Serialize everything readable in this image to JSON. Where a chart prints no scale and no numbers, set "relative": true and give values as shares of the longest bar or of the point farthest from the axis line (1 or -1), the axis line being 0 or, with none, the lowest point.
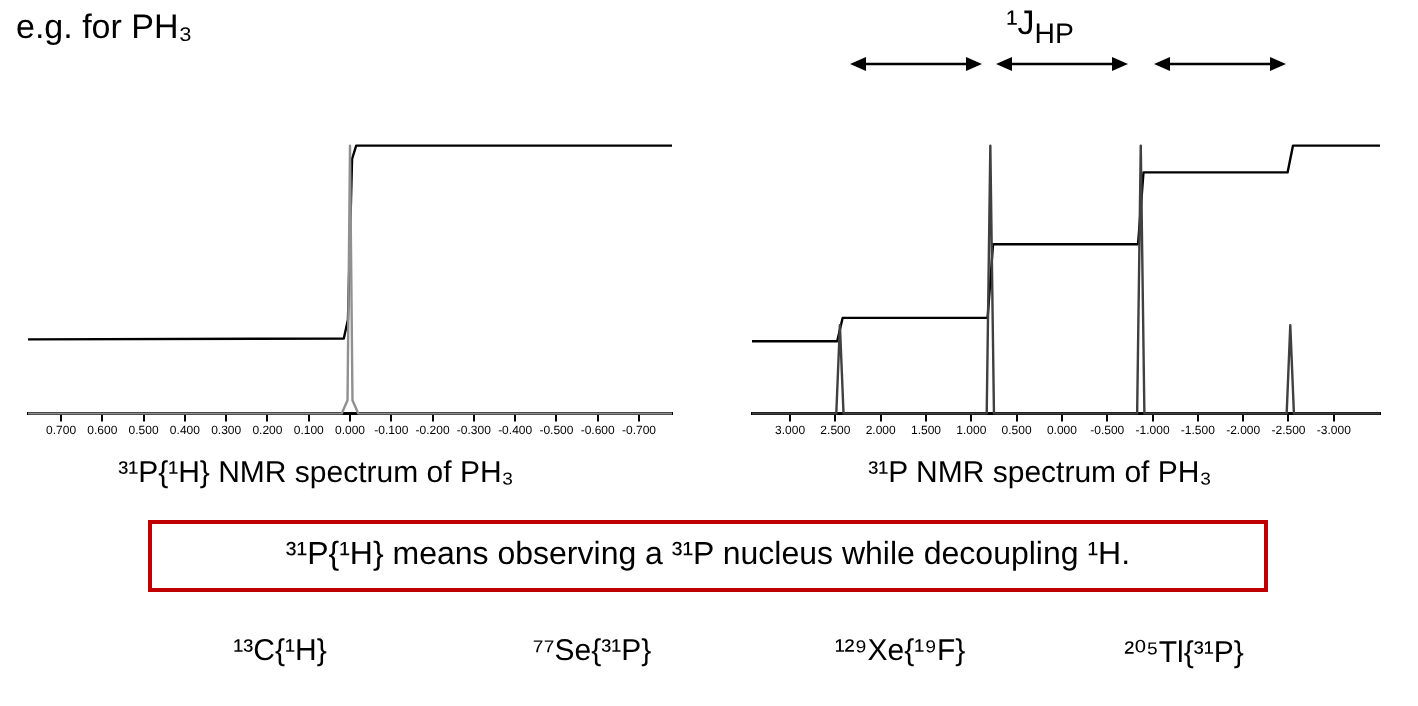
{
  "chart_data": [
    {
      "type": "line",
      "title": "e.g. for PH₃",
      "xlabel": "³¹P{¹H} NMR spectrum of PH₃",
      "relative": true,
      "xlim": [
        0.78,
        -0.78
      ],
      "xticks": [
        {
          "value": 0.7,
          "label": "0.700"
        },
        {
          "value": 0.6,
          "label": "0.600"
        },
        {
          "value": 0.5,
          "label": "0.500"
        },
        {
          "value": 0.4,
          "label": "0.400"
        },
        {
          "value": 0.3,
          "label": "0.300"
        },
        {
          "value": 0.2,
          "label": "0.200"
        },
        {
          "value": 0.1,
          "label": "0.100"
        },
        {
          "value": 0,
          "label": "0.000"
        },
        {
          "value": -0.1,
          "label": "-0.100"
        },
        {
          "value": -0.2,
          "label": "-0.200"
        },
        {
          "value": -0.3,
          "label": "-0.300"
        },
        {
          "value": -0.4,
          "label": "-0.400"
        },
        {
          "value": -0.5,
          "label": "-0.500"
        },
        {
          "value": -0.6,
          "label": "-0.600"
        },
        {
          "value": -0.7,
          "label": "-0.700"
        }
      ],
      "series": [
        {
          "color": "#909090",
          "x": [
            0.78,
            0.02,
            0.006,
            0,
            -0.006,
            -0.02,
            -0.78
          ],
          "values": [
            0,
            0,
            0.05,
            1,
            0.05,
            0,
            0
          ]
        },
        {
          "color": "#000000",
          "x": [
            0.78,
            0.015,
            0.005,
            -0.005,
            -0.015,
            -0.78
          ],
          "values": [
            0.277,
            0.28,
            0.35,
            0.95,
            1,
            1
          ]
        }
      ],
      "legend": false,
      "grid": false
    },
    {
      "type": "line",
      "xlabel": "³¹P NMR spectrum of PH₃",
      "annotations": [
        "¹J$_{HP}$"
      ],
      "relative": true,
      "xlim": [
        3.42,
        -3.51
      ],
      "xticks": [
        {
          "value": 3,
          "label": "3.000"
        },
        {
          "value": 2.5,
          "label": "2.500"
        },
        {
          "value": 2,
          "label": "2.000"
        },
        {
          "value": 1.5,
          "label": "1.500"
        },
        {
          "value": 1,
          "label": "1.000"
        },
        {
          "value": 0.5,
          "label": "0.500"
        },
        {
          "value": 0,
          "label": "0.000"
        },
        {
          "value": -0.5,
          "label": "-0.500"
        },
        {
          "value": -1,
          "label": "-1.000"
        },
        {
          "value": -1.5,
          "label": "-1.500"
        },
        {
          "value": -2,
          "label": "-2.000"
        },
        {
          "value": -2.5,
          "label": "-2.500"
        },
        {
          "value": -3,
          "label": "-3.000"
        }
      ],
      "series": [
        {
          "color": "#404040",
          "x": [
            3.42,
            2.49,
            2.45,
            2.41,
            0.83,
            0.79,
            0.75,
            -0.83,
            -0.87,
            -0.91,
            -2.48,
            -2.52,
            -2.56,
            -3.51
          ],
          "values": [
            0,
            0,
            0.33,
            0,
            0,
            1,
            0,
            0,
            1,
            0,
            0,
            0.33,
            0,
            0
          ]
        },
        {
          "color": "#000000",
          "x": [
            3.42,
            2.48,
            2.42,
            0.82,
            0.76,
            -0.84,
            -0.9,
            -2.49,
            -2.55,
            -3.51
          ],
          "values": [
            0.27,
            0.27,
            0.357,
            0.357,
            0.632,
            0.632,
            0.9,
            0.9,
            1,
            1
          ]
        }
      ],
      "legend": false,
      "grid": false
    },
    {
      "type": "other",
      "title": "³¹P{¹H} means observing a ³¹P nucleus while decoupling ¹H.",
      "annotations": [
        "¹³C{¹H}",
        "⁷⁷Se{³¹P}",
        "¹²⁹Xe{¹⁹F}",
        "²⁰⁵Tl{³¹P}"
      ]
    }
  ]
}
